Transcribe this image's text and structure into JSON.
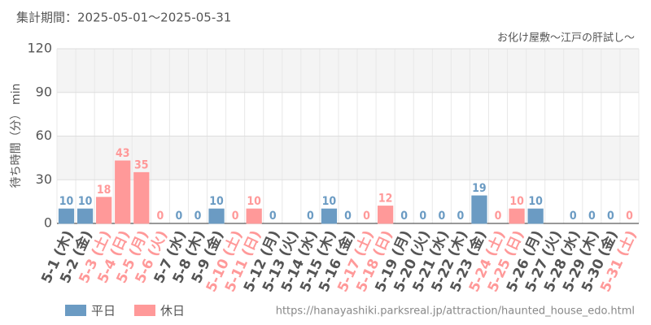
{
  "chart_data": {
    "type": "bar",
    "title": "集計期間：2025-05-01〜2025-05-31",
    "subtitle": "お化け屋敷〜江戸の肝試し〜",
    "y_label": "待ち時間（分） min",
    "source": "https://hanayashiki.parksreal.jp/attraction/haunted_house_edo.html",
    "categories": [
      "5-1 (木)",
      "5-2 (金)",
      "5-3 (土)",
      "5-4 (日)",
      "5-5 (月)",
      "5-6 (火)",
      "5-7 (水)",
      "5-8 (木)",
      "5-9 (金)",
      "5-10 (土)",
      "5-11 (日)",
      "5-12 (月)",
      "5-13 (火)",
      "5-14 (水)",
      "5-15 (木)",
      "5-16 (金)",
      "5-17 (土)",
      "5-18 (日)",
      "5-19 (月)",
      "5-20 (火)",
      "5-21 (水)",
      "5-22 (木)",
      "5-23 (金)",
      "5-24 (土)",
      "5-25 (日)",
      "5-26 (月)",
      "5-27 (火)",
      "5-28 (水)",
      "5-29 (木)",
      "5-30 (金)",
      "5-31 (土)"
    ],
    "series": [
      {
        "name": "平日",
        "color": "#6b9bc3",
        "values": [
          10,
          10,
          null,
          null,
          null,
          null,
          0,
          0,
          10,
          null,
          null,
          0,
          null,
          0,
          10,
          0,
          null,
          null,
          0,
          0,
          0,
          0,
          19,
          null,
          null,
          10,
          null,
          0,
          0,
          0,
          null
        ]
      },
      {
        "name": "休日",
        "color": "#ff9999",
        "values": [
          null,
          null,
          18,
          43,
          35,
          0,
          null,
          null,
          null,
          0,
          10,
          null,
          null,
          null,
          null,
          null,
          0,
          12,
          null,
          null,
          null,
          null,
          null,
          0,
          10,
          null,
          null,
          null,
          null,
          null,
          0
        ]
      }
    ],
    "ylim": [
      0,
      120
    ],
    "yticks": [
      0,
      30,
      60,
      90,
      120
    ],
    "grid": true
  }
}
